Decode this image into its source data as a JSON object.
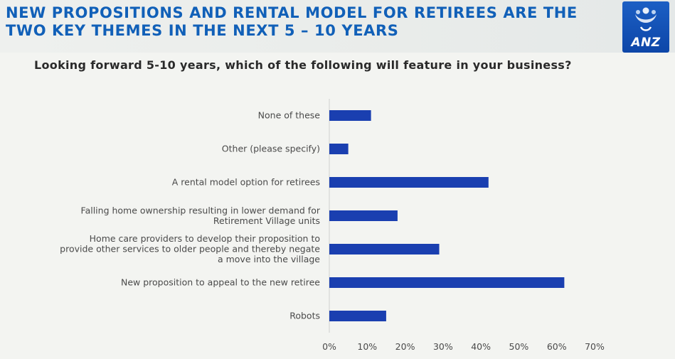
{
  "slide": {
    "title_lines": [
      "NEW PROPOSITIONS AND RENTAL MODEL FOR RETIREES ARE THE",
      "TWO KEY THEMES IN THE NEXT 5 – 10 YEARS"
    ],
    "logo_text": "ANZ",
    "brand_color": "#1160b8"
  },
  "chart_data": {
    "type": "bar",
    "orientation": "horizontal",
    "title": "Looking forward 5-10 years, which of the following will feature in your business?",
    "xlabel": "",
    "ylabel": "",
    "xlim": [
      0,
      70
    ],
    "grid": false,
    "bar_color": "#1a3fb0",
    "categories": [
      [
        "None of these"
      ],
      [
        "Other (please specify)"
      ],
      [
        "A rental model option for retirees"
      ],
      [
        "Falling home ownership resulting in lower demand for",
        "Retirement Village units"
      ],
      [
        "Home care providers to develop their proposition to",
        "provide other services to older people and thereby negate",
        "a move into the village"
      ],
      [
        "New proposition to appeal to the new retiree"
      ],
      [
        "Robots"
      ]
    ],
    "values": [
      11,
      5,
      42,
      18,
      29,
      62,
      15
    ],
    "ticks": [
      "0%",
      "10%",
      "20%",
      "30%",
      "40%",
      "50%",
      "60%",
      "70%"
    ]
  }
}
